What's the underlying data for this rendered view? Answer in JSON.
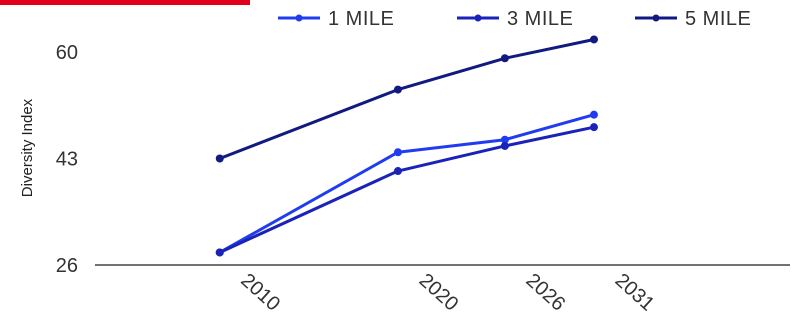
{
  "chart_data": {
    "type": "line",
    "title": "",
    "xlabel": "",
    "ylabel": "Diversity Index",
    "x": [
      "2010",
      "2020",
      "2026",
      "2031"
    ],
    "x_values": [
      2010,
      2020,
      2026,
      2031
    ],
    "ylim": [
      26,
      63
    ],
    "yticks": [
      "26",
      "43",
      "60"
    ],
    "ytick_values": [
      26,
      43,
      60
    ],
    "grid": false,
    "legend_position": "top-right",
    "series": [
      {
        "name": "1 MILE",
        "color": "#1f3cf0",
        "values": [
          28,
          44,
          46,
          50
        ]
      },
      {
        "name": "3 MILE",
        "color": "#1a22b8",
        "values": [
          28,
          41,
          45,
          48
        ]
      },
      {
        "name": "5 MILE",
        "color": "#101a80",
        "values": [
          43,
          54,
          59,
          62
        ]
      }
    ]
  }
}
